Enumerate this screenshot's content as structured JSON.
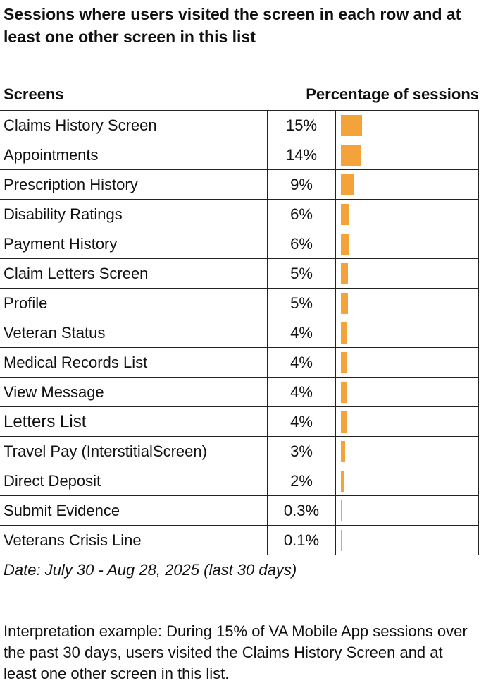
{
  "title": "Sessions where users visited the screen in each row and at least one other screen in this list",
  "table": {
    "col_screens": "Screens",
    "col_pct": "Percentage of sessions"
  },
  "chart_data": {
    "type": "bar",
    "orientation": "horizontal",
    "title": "Sessions where users visited the screen in each row and at least one other screen in this list",
    "xlabel": "Percentage of sessions",
    "ylabel": "Screens",
    "bar_color": "#f4a23a",
    "xlim": [
      0,
      100
    ],
    "categories": [
      "Claims History Screen",
      "Appointments",
      "Prescription History",
      "Disability Ratings",
      "Payment History",
      "Claim Letters Screen",
      "Profile",
      "Veteran Status",
      "Medical Records List",
      "View Message",
      "Letters List",
      "Travel Pay (InterstitialScreen)",
      "Direct Deposit",
      "Submit Evidence",
      "Veterans Crisis Line"
    ],
    "values": [
      15,
      14,
      9,
      6,
      6,
      5,
      5,
      4,
      4,
      4,
      4,
      3,
      2,
      0.3,
      0.1
    ],
    "labels": [
      "15%",
      "14%",
      "9%",
      "6%",
      "6%",
      "5%",
      "5%",
      "4%",
      "4%",
      "4%",
      "4%",
      "3%",
      "2%",
      "0.3%",
      "0.1%"
    ]
  },
  "footer": {
    "date": "Date: July 30 - Aug 28, 2025 (last 30 days)",
    "interpretation": "Interpretation example: During 15% of VA Mobile App sessions over the past 30 days, users visited the Claims History Screen and at least one other screen in this list."
  }
}
